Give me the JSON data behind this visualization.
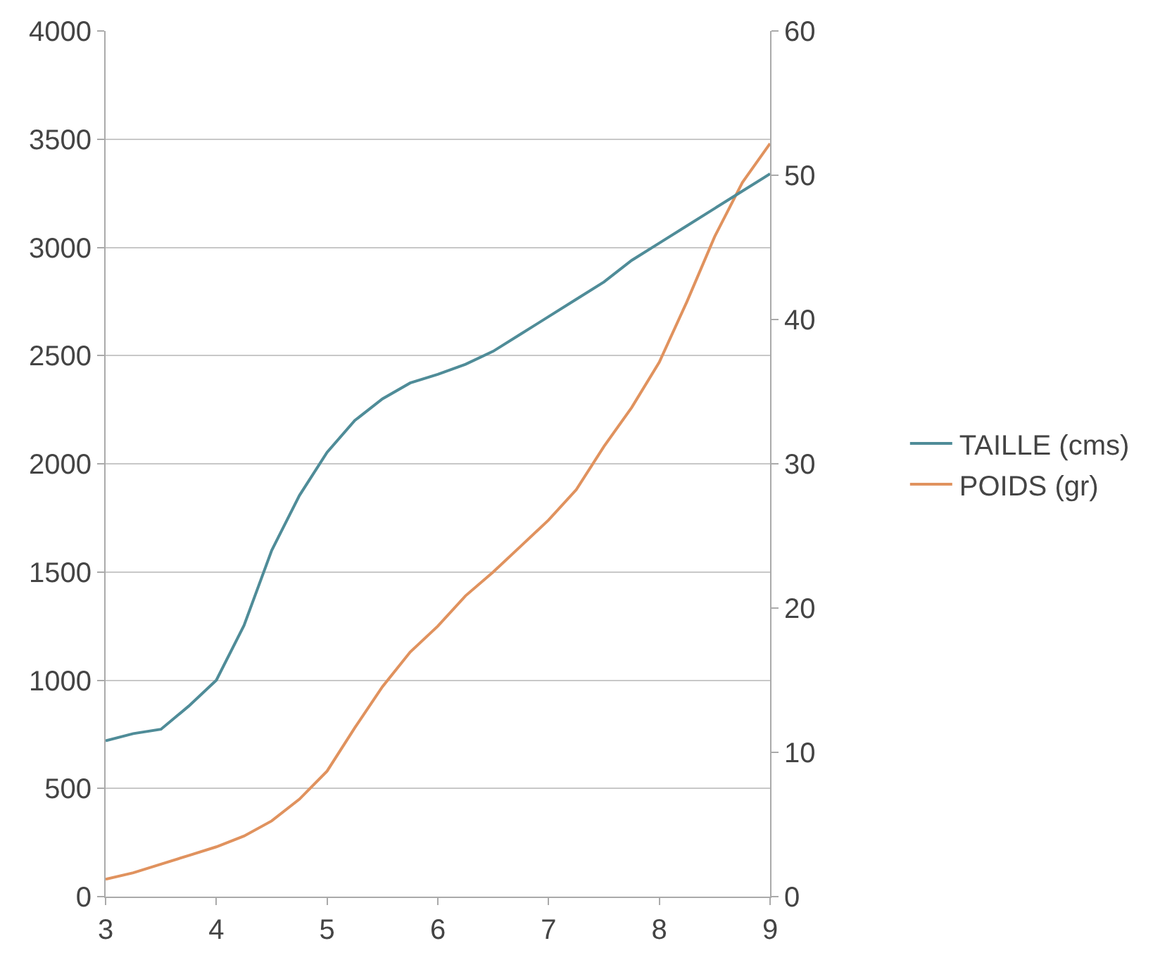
{
  "chart_data": {
    "type": "line",
    "x": [
      3,
      3.25,
      3.5,
      3.75,
      4,
      4.25,
      4.5,
      4.75,
      5,
      5.25,
      5.5,
      5.75,
      6,
      6.25,
      6.5,
      6.75,
      7,
      7.25,
      7.5,
      7.75,
      8,
      8.25,
      8.5,
      8.75,
      9
    ],
    "series": [
      {
        "name": "TAILLE (cms)",
        "color": "#4f8c98",
        "axis": "y2",
        "values": [
          10.8,
          11.3,
          11.6,
          13.2,
          15,
          18.8,
          24,
          27.8,
          30.8,
          33,
          34.5,
          35.6,
          36.2,
          36.9,
          37.8,
          39,
          40.2,
          41.4,
          42.6,
          44.1,
          45.3,
          46.5,
          47.7,
          48.9,
          50.1
        ]
      },
      {
        "name": "POIDS (gr)",
        "color": "#e0925e",
        "values": [
          80,
          110,
          150,
          190,
          230,
          280,
          350,
          450,
          580,
          780,
          970,
          1130,
          1250,
          1390,
          1500,
          1620,
          1740,
          1880,
          2080,
          2260,
          2470,
          2750,
          3050,
          3300,
          3480
        ]
      }
    ],
    "xlim": [
      3,
      9
    ],
    "xticks": [
      3,
      4,
      5,
      6,
      7,
      8,
      9
    ],
    "ylim": [
      0,
      4000
    ],
    "yticks": [
      0,
      500,
      1000,
      1500,
      2000,
      2500,
      3000,
      3500,
      4000
    ],
    "y2lim": [
      0,
      60
    ],
    "y2ticks": [
      0,
      10,
      20,
      30,
      40,
      50,
      60
    ],
    "grid": "y",
    "legend": "right"
  }
}
